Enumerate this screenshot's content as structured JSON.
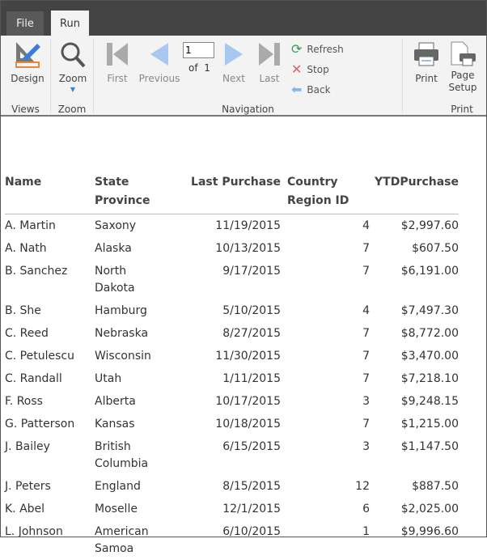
{
  "tabs": [
    {
      "label": "File"
    },
    {
      "label": "Run"
    }
  ],
  "ribbon": {
    "design": "Design",
    "zoom": "Zoom",
    "first": "First",
    "previous": "Previous",
    "page": "1",
    "of_label": "of",
    "total_pages": "1",
    "next": "Next",
    "last": "Last",
    "refresh": "Refresh",
    "stop": "Stop",
    "back": "Back",
    "print": "Print",
    "page_setup": "Page Setup",
    "groups": {
      "views": "Views",
      "zoom": "Zoom",
      "navigation": "Navigation",
      "print": "Print"
    }
  },
  "table": {
    "headers": [
      "Name",
      "State Province",
      "Last Purchase",
      "Country Region ID",
      "YTDPurchase"
    ],
    "rows": [
      [
        "A. Martin",
        "Saxony",
        "11/19/2015",
        "4",
        "$2,997.60"
      ],
      [
        "A. Nath",
        "Alaska",
        "10/13/2015",
        "7",
        "$607.50"
      ],
      [
        "B. Sanchez",
        "North Dakota",
        "9/17/2015",
        "7",
        "$6,191.00"
      ],
      [
        "B. She",
        "Hamburg",
        "5/10/2015",
        "4",
        "$7,497.30"
      ],
      [
        "C. Reed",
        "Nebraska",
        "8/27/2015",
        "7",
        "$8,772.00"
      ],
      [
        "C. Petulescu",
        "Wisconsin",
        "11/30/2015",
        "7",
        "$3,470.00"
      ],
      [
        "C. Randall",
        "Utah",
        "1/11/2015",
        "7",
        "$7,218.10"
      ],
      [
        "F. Ross",
        "Alberta",
        "10/17/2015",
        "3",
        "$9,248.15"
      ],
      [
        "G. Patterson",
        "Kansas",
        "10/18/2015",
        "7",
        "$1,215.00"
      ],
      [
        "J. Bailey",
        "British Columbia",
        "6/15/2015",
        "3",
        "$1,147.50"
      ],
      [
        "J. Peters",
        "England",
        "8/15/2015",
        "12",
        "$887.50"
      ],
      [
        "K. Abel",
        "Moselle",
        "12/1/2015",
        "6",
        "$2,025.00"
      ],
      [
        "L. Johnson",
        "American Samoa",
        "6/10/2015",
        "1",
        "$9,996.60"
      ]
    ]
  }
}
